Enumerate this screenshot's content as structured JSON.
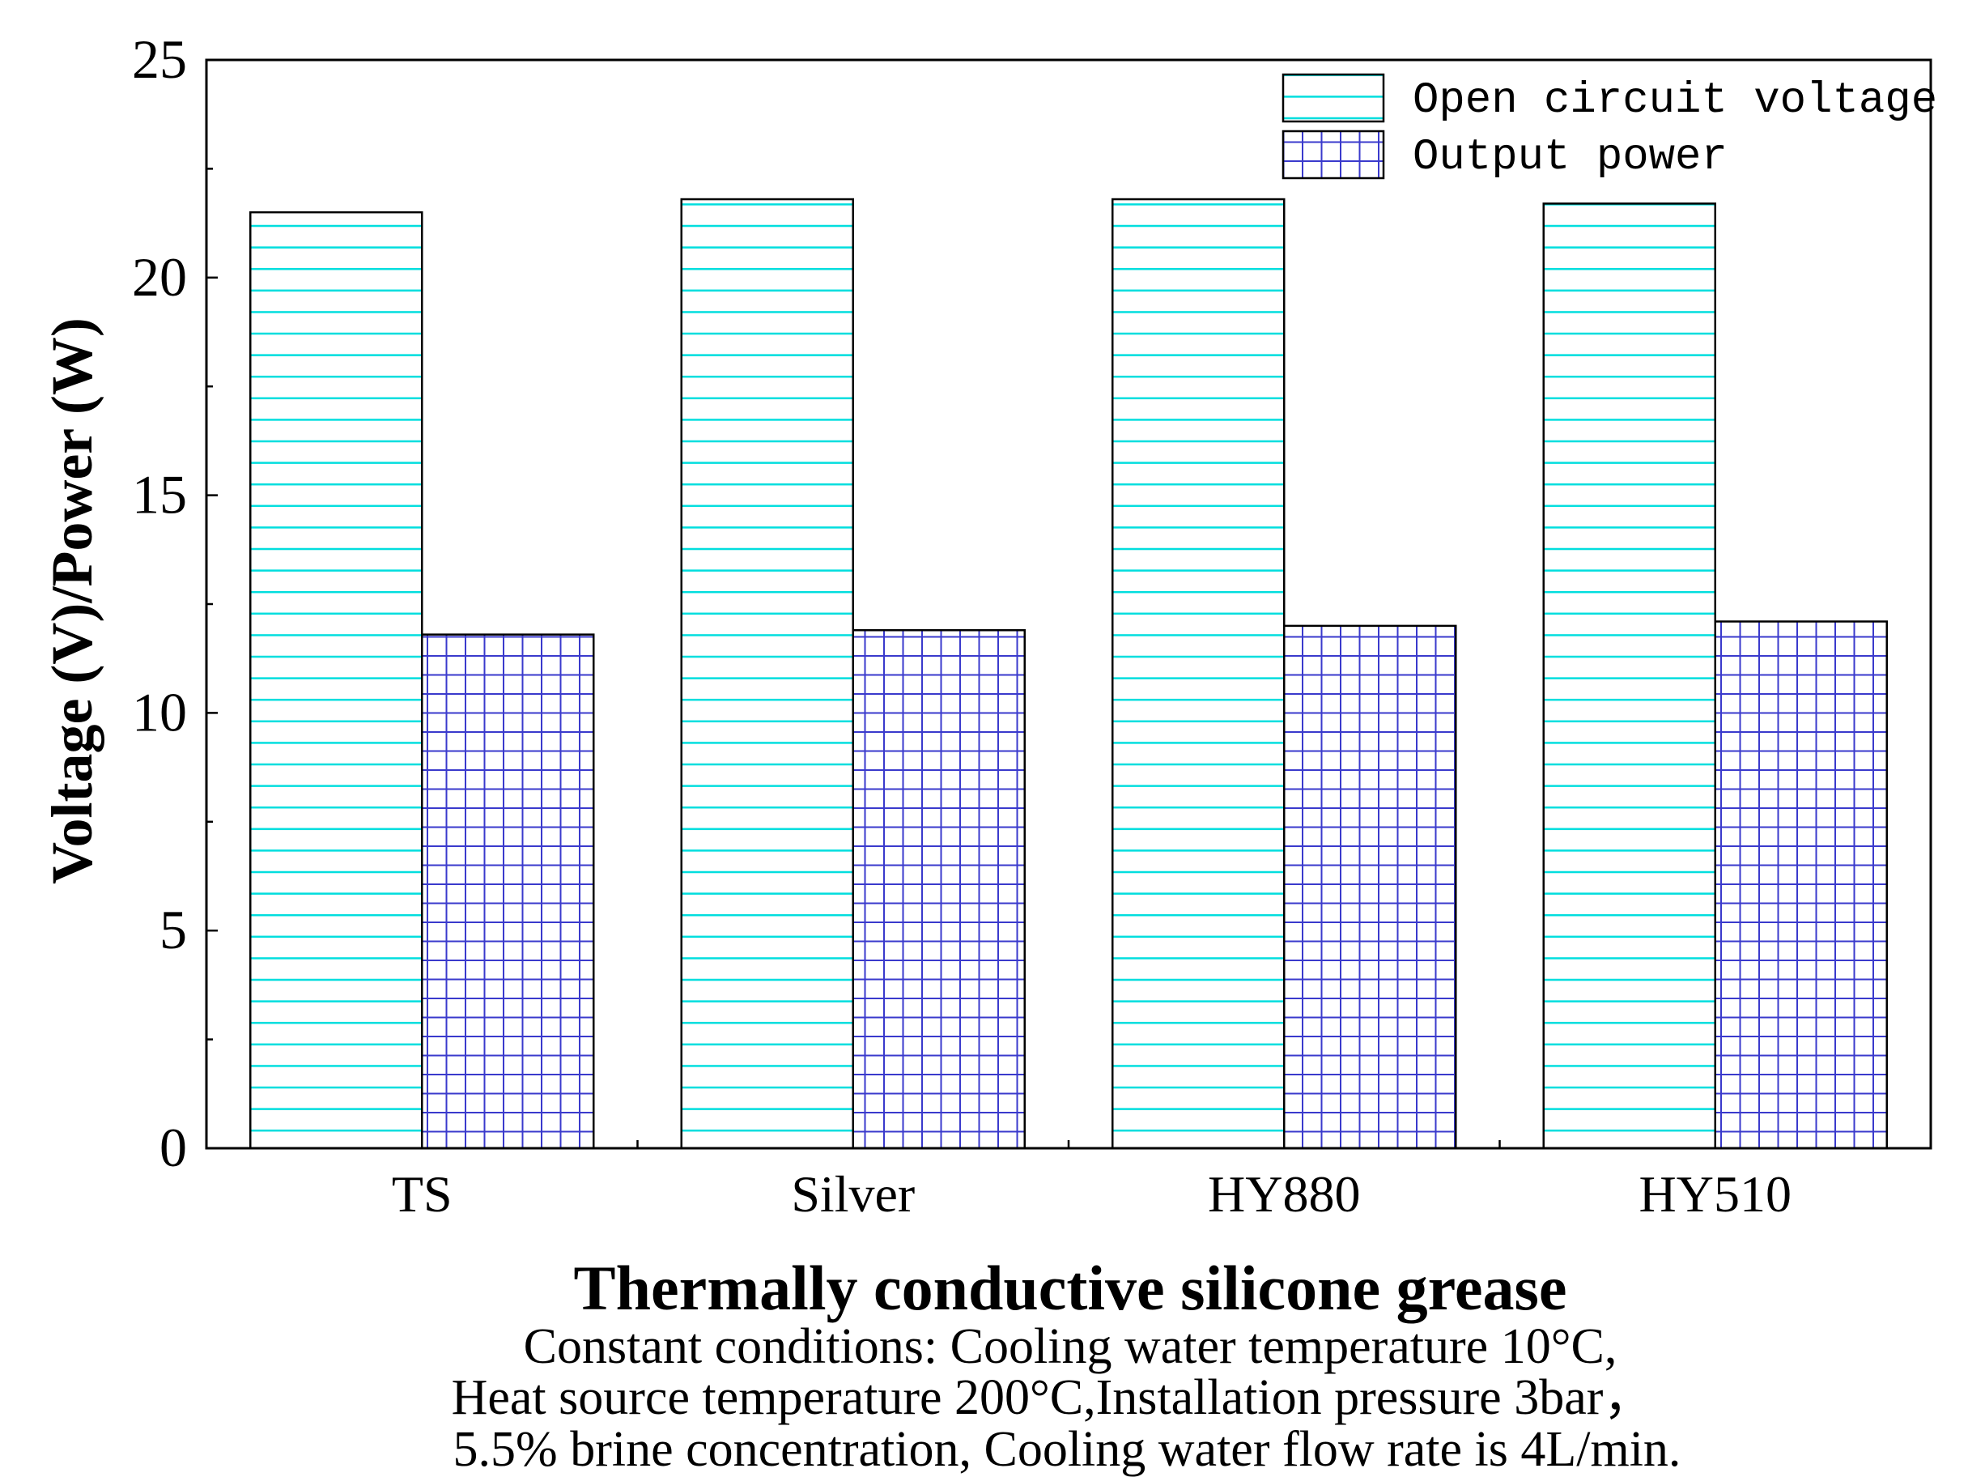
{
  "chart_data": {
    "type": "bar",
    "categories": [
      "TS",
      "Silver",
      "HY880",
      "HY510"
    ],
    "series": [
      {
        "name": "Open circuit voltage",
        "values": [
          21.5,
          21.8,
          21.8,
          21.7
        ],
        "pattern": "horizontal-lines",
        "color": "#00e5e5"
      },
      {
        "name": "Output power",
        "values": [
          11.8,
          11.9,
          12.0,
          12.1
        ],
        "pattern": "grid",
        "color": "#3333cc"
      }
    ],
    "xlabel": "Thermally conductive silicone grease",
    "ylabel": "Voltage (V)/Power (W)",
    "ylim": [
      0,
      25
    ],
    "yticks": [
      "0",
      "5",
      "10",
      "15",
      "20",
      "25"
    ],
    "legend_position": "top-right",
    "grid": false
  },
  "caption": {
    "line1": "Constant conditions: Cooling water temperature 10°C,",
    "line2": "Heat source temperature 200°C,Installation pressure 3bar，",
    "line3": "5.5% brine concentration, Cooling water flow rate is 4L/min."
  }
}
